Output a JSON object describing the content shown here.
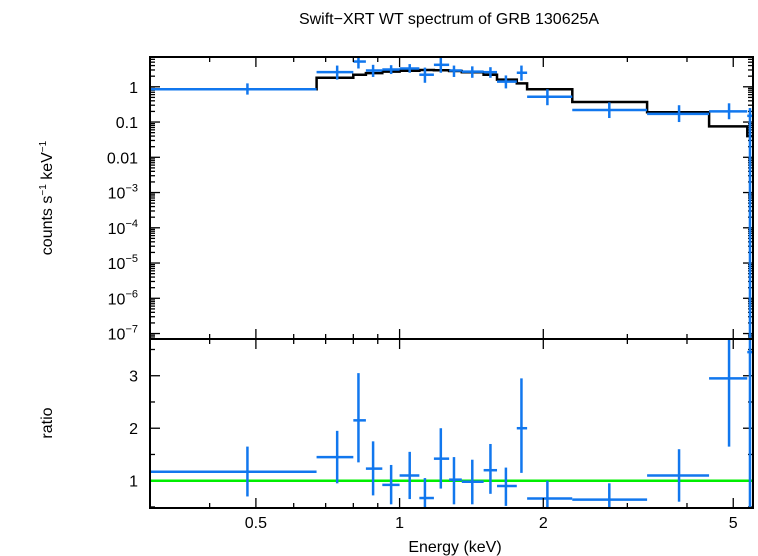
{
  "chart_data": {
    "type": "scatter",
    "title": "Swift−XRT WT spectrum of GRB 130625A",
    "xlabel": "Energy (keV)",
    "x_scale": "log",
    "xlim": [
      0.3,
      5.5
    ],
    "x_ticks": [
      {
        "value": 0.5,
        "label": "0.5"
      },
      {
        "value": 1,
        "label": "1"
      },
      {
        "value": 2,
        "label": "2"
      },
      {
        "value": 5,
        "label": "5"
      }
    ],
    "colors": {
      "data": "#1177ee",
      "model": "#000000",
      "ratio_line": "#00ee00",
      "axes": "#000000"
    },
    "panels": [
      {
        "name": "spectrum",
        "ylabel_main": "counts s",
        "ylabel_sup1": "−1",
        "ylabel_mid": " keV",
        "ylabel_sup2": "−1",
        "y_scale": "log",
        "ylim": [
          7e-08,
          7
        ],
        "y_ticks": [
          {
            "value": 1,
            "label": "1"
          },
          {
            "value": 0.1,
            "label": "0.1"
          },
          {
            "value": 0.01,
            "label": "0.01"
          },
          {
            "value": 0.001,
            "base": "10",
            "exp": "−3"
          },
          {
            "value": 0.0001,
            "base": "10",
            "exp": "−4"
          },
          {
            "value": 1e-05,
            "base": "10",
            "exp": "−5"
          },
          {
            "value": 1e-06,
            "base": "10",
            "exp": "−6"
          },
          {
            "value": 1e-07,
            "base": "10",
            "exp": "−7"
          }
        ],
        "data_series": {
          "name": "data",
          "points": [
            {
              "x": 0.48,
              "xlo": 0.3,
              "xhi": 0.67,
              "y": 0.85,
              "ylo": 0.6,
              "yhi": 1.25
            },
            {
              "x": 0.74,
              "xlo": 0.67,
              "xhi": 0.8,
              "y": 2.6,
              "ylo": 1.6,
              "yhi": 4.0
            },
            {
              "x": 0.82,
              "xlo": 0.8,
              "xhi": 0.85,
              "y": 5.2,
              "ylo": 3.3,
              "yhi": 7.5
            },
            {
              "x": 0.88,
              "xlo": 0.85,
              "xhi": 0.92,
              "y": 2.9,
              "ylo": 1.9,
              "yhi": 4.2
            },
            {
              "x": 0.96,
              "xlo": 0.92,
              "xhi": 1.0,
              "y": 3.1,
              "ylo": 2.3,
              "yhi": 4.1
            },
            {
              "x": 1.05,
              "xlo": 1.0,
              "xhi": 1.1,
              "y": 3.3,
              "ylo": 2.5,
              "yhi": 4.4
            },
            {
              "x": 1.13,
              "xlo": 1.1,
              "xhi": 1.18,
              "y": 2.2,
              "ylo": 1.3,
              "yhi": 3.5
            },
            {
              "x": 1.22,
              "xlo": 1.18,
              "xhi": 1.27,
              "y": 4.2,
              "ylo": 2.5,
              "yhi": 6.8
            },
            {
              "x": 1.3,
              "xlo": 1.27,
              "xhi": 1.35,
              "y": 2.9,
              "ylo": 1.9,
              "yhi": 4.0
            },
            {
              "x": 1.42,
              "xlo": 1.35,
              "xhi": 1.5,
              "y": 2.7,
              "ylo": 1.8,
              "yhi": 3.8
            },
            {
              "x": 1.55,
              "xlo": 1.5,
              "xhi": 1.6,
              "y": 2.6,
              "ylo": 1.8,
              "yhi": 3.6
            },
            {
              "x": 1.67,
              "xlo": 1.6,
              "xhi": 1.76,
              "y": 1.4,
              "ylo": 0.9,
              "yhi": 2.1
            },
            {
              "x": 1.8,
              "xlo": 1.76,
              "xhi": 1.85,
              "y": 2.5,
              "ylo": 1.5,
              "yhi": 4.0
            },
            {
              "x": 2.04,
              "xlo": 1.85,
              "xhi": 2.3,
              "y": 0.52,
              "ylo": 0.3,
              "yhi": 0.85
            },
            {
              "x": 2.75,
              "xlo": 2.3,
              "xhi": 3.3,
              "y": 0.22,
              "ylo": 0.13,
              "yhi": 0.36
            },
            {
              "x": 3.85,
              "xlo": 3.3,
              "xhi": 4.45,
              "y": 0.17,
              "ylo": 0.1,
              "yhi": 0.3
            },
            {
              "x": 4.9,
              "xlo": 4.45,
              "xhi": 5.35,
              "y": 0.2,
              "ylo": 0.12,
              "yhi": 0.34
            },
            {
              "x": 5.42,
              "xlo": 5.35,
              "xhi": 5.5,
              "y": 0.15,
              "ylo": 7e-08,
              "yhi": 0.25
            }
          ]
        },
        "model_series": {
          "name": "model",
          "steps": [
            {
              "xlo": 0.3,
              "xhi": 0.67,
              "y": 0.85
            },
            {
              "xlo": 0.67,
              "xhi": 0.8,
              "y": 1.8
            },
            {
              "xlo": 0.8,
              "xhi": 0.85,
              "y": 2.2
            },
            {
              "xlo": 0.85,
              "xhi": 0.92,
              "y": 2.45
            },
            {
              "xlo": 0.92,
              "xhi": 1.0,
              "y": 2.7
            },
            {
              "xlo": 1.0,
              "xhi": 1.1,
              "y": 2.85
            },
            {
              "xlo": 1.1,
              "xhi": 1.18,
              "y": 3.0
            },
            {
              "xlo": 1.18,
              "xhi": 1.27,
              "y": 2.95
            },
            {
              "xlo": 1.27,
              "xhi": 1.35,
              "y": 2.8
            },
            {
              "xlo": 1.35,
              "xhi": 1.5,
              "y": 2.6
            },
            {
              "xlo": 1.5,
              "xhi": 1.6,
              "y": 2.2
            },
            {
              "xlo": 1.6,
              "xhi": 1.76,
              "y": 1.6
            },
            {
              "xlo": 1.76,
              "xhi": 1.85,
              "y": 1.25
            },
            {
              "xlo": 1.85,
              "xhi": 2.3,
              "y": 0.85
            },
            {
              "xlo": 2.3,
              "xhi": 3.3,
              "y": 0.37
            },
            {
              "xlo": 3.3,
              "xhi": 4.45,
              "y": 0.19
            },
            {
              "xlo": 4.45,
              "xhi": 5.35,
              "y": 0.075
            },
            {
              "xlo": 5.35,
              "xhi": 5.5,
              "y": 0.04
            }
          ]
        }
      },
      {
        "name": "ratio",
        "ylabel": "ratio",
        "y_scale": "linear",
        "ylim": [
          0.48,
          3.7
        ],
        "y_ticks": [
          {
            "value": 1,
            "label": "1"
          },
          {
            "value": 2,
            "label": "2"
          },
          {
            "value": 3,
            "label": "3"
          }
        ],
        "reference_line": 1,
        "data_series": {
          "name": "ratio",
          "points": [
            {
              "x": 0.48,
              "xlo": 0.3,
              "xhi": 0.67,
              "y": 1.17,
              "ylo": 0.7,
              "yhi": 1.65
            },
            {
              "x": 0.74,
              "xlo": 0.67,
              "xhi": 0.8,
              "y": 1.45,
              "ylo": 0.95,
              "yhi": 1.95
            },
            {
              "x": 0.82,
              "xlo": 0.8,
              "xhi": 0.85,
              "y": 2.15,
              "ylo": 1.35,
              "yhi": 3.05
            },
            {
              "x": 0.88,
              "xlo": 0.85,
              "xhi": 0.92,
              "y": 1.23,
              "ylo": 0.72,
              "yhi": 1.75
            },
            {
              "x": 0.96,
              "xlo": 0.92,
              "xhi": 1.0,
              "y": 0.92,
              "ylo": 0.55,
              "yhi": 1.3
            },
            {
              "x": 1.05,
              "xlo": 1.0,
              "xhi": 1.1,
              "y": 1.1,
              "ylo": 0.65,
              "yhi": 1.55
            },
            {
              "x": 1.13,
              "xlo": 1.1,
              "xhi": 1.18,
              "y": 0.67,
              "ylo": 0.48,
              "yhi": 1.05
            },
            {
              "x": 1.22,
              "xlo": 1.18,
              "xhi": 1.27,
              "y": 1.42,
              "ylo": 0.85,
              "yhi": 2.0
            },
            {
              "x": 1.3,
              "xlo": 1.27,
              "xhi": 1.35,
              "y": 1.02,
              "ylo": 0.55,
              "yhi": 1.45
            },
            {
              "x": 1.42,
              "xlo": 1.35,
              "xhi": 1.5,
              "y": 0.98,
              "ylo": 0.55,
              "yhi": 1.4
            },
            {
              "x": 1.55,
              "xlo": 1.5,
              "xhi": 1.6,
              "y": 1.2,
              "ylo": 0.75,
              "yhi": 1.7
            },
            {
              "x": 1.67,
              "xlo": 1.6,
              "xhi": 1.76,
              "y": 0.9,
              "ylo": 0.52,
              "yhi": 1.25
            },
            {
              "x": 1.8,
              "xlo": 1.76,
              "xhi": 1.85,
              "y": 2.0,
              "ylo": 1.15,
              "yhi": 2.95
            },
            {
              "x": 2.04,
              "xlo": 1.85,
              "xhi": 2.3,
              "y": 0.66,
              "ylo": 0.48,
              "yhi": 1.0
            },
            {
              "x": 2.75,
              "xlo": 2.3,
              "xhi": 3.3,
              "y": 0.64,
              "ylo": 0.48,
              "yhi": 0.95
            },
            {
              "x": 3.85,
              "xlo": 3.3,
              "xhi": 4.45,
              "y": 1.1,
              "ylo": 0.6,
              "yhi": 1.6
            },
            {
              "x": 4.9,
              "xlo": 4.45,
              "xhi": 5.35,
              "y": 2.95,
              "ylo": 1.65,
              "yhi": 3.7
            },
            {
              "x": 5.42,
              "xlo": 5.35,
              "xhi": 5.5,
              "y": 3.45,
              "ylo": 0.48,
              "yhi": 3.7
            }
          ]
        }
      }
    ]
  }
}
